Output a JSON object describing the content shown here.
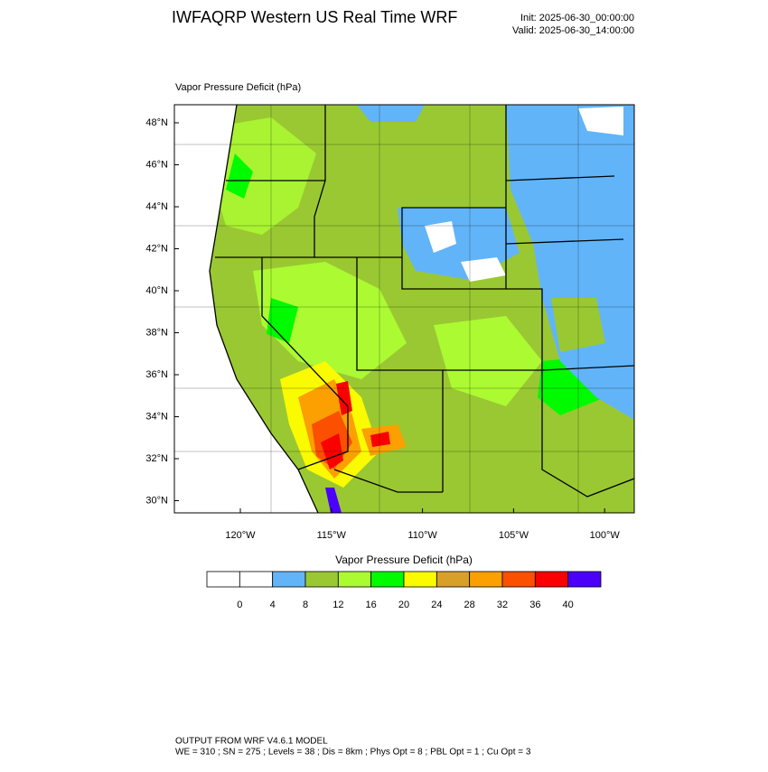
{
  "header": {
    "title": "IWFAQRP Western US Real Time WRF",
    "init": "Init: 2025-06-30_00:00:00",
    "valid": "Valid: 2025-06-30_14:00:00"
  },
  "map": {
    "subtitle": "Vapor Pressure Deficit   (hPa)",
    "lat_labels": [
      "48°N",
      "46°N",
      "44°N",
      "42°N",
      "40°N",
      "38°N",
      "36°N",
      "34°N",
      "32°N",
      "30°N"
    ],
    "lon_labels": [
      "120°W",
      "115°W",
      "110°W",
      "105°W",
      "100°W"
    ]
  },
  "colorbar": {
    "title": "Vapor Pressure Deficit  (hPa)",
    "colors": [
      "#ffffff",
      "#ffffff",
      "#62b4f9",
      "#9ac832",
      "#acfa32",
      "#00fa00",
      "#fafa00",
      "#d8a028",
      "#fba000",
      "#fa5000",
      "#fa0000",
      "#4b00fa"
    ],
    "labels": [
      0,
      4,
      8,
      12,
      16,
      20,
      24,
      28,
      32,
      36,
      40
    ]
  },
  "footer": {
    "line1": "OUTPUT FROM WRF V4.6.1 MODEL",
    "line2": "WE = 310 ; SN = 275 ; Levels = 38 ; Dis = 8km ; Phys Opt = 8 ; PBL Opt = 1 ; Cu Opt = 3"
  }
}
